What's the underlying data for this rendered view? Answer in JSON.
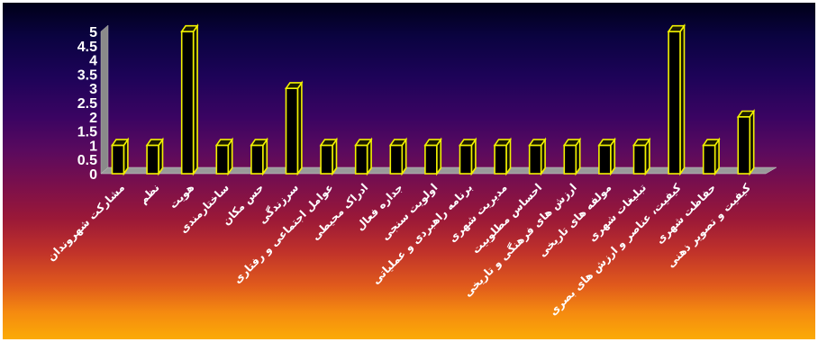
{
  "chart_data": {
    "type": "bar",
    "style": "3d-column",
    "categories": [
      "مشارکت شهروندان",
      "نظم",
      "هویت",
      "ساختارمندی",
      "حس مکان",
      "سرزندگی",
      "عوامل اجتماعی و رفتاری",
      "ادراک محیطی",
      "جداره فعال",
      "اولویت سنجی",
      "برنامه راهبردی و عملیاتی",
      "مدیریت شهری",
      "احساس مطلوبیت",
      "ارزش های فرهنگی و تاریخی",
      "مولفه های تاریخی",
      "تبلیغات شهری",
      "کیفیت، عناصر و ارزش های بصری",
      "حفاظت شهری",
      "کیفیت و تصویر ذهنی"
    ],
    "values": [
      1,
      1,
      5,
      1,
      1,
      3,
      1,
      1,
      1,
      1,
      1,
      1,
      1,
      1,
      1,
      1,
      5,
      1,
      2
    ],
    "y_ticks": [
      "0",
      "0.5",
      "1",
      "1.5",
      "2",
      "2.5",
      "3",
      "3.5",
      "4",
      "4.5",
      "5"
    ],
    "ylim": [
      0,
      5
    ],
    "title": "",
    "xlabel": "",
    "ylabel": "",
    "grid": false,
    "legend": false,
    "colors": {
      "bar_face": "#000000",
      "bar_edge": "#f2f200",
      "wall": "#8a8a8a",
      "floor": "#9a9a9a",
      "text": "#ffffff"
    }
  }
}
